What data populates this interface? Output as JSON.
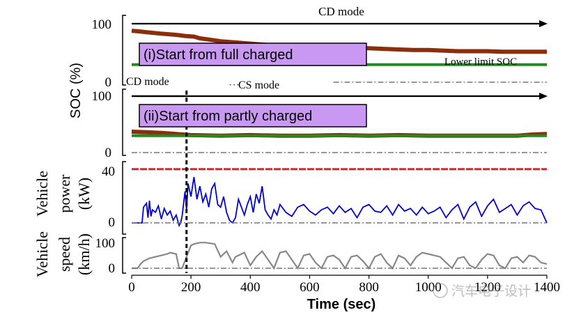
{
  "chart_data": {
    "type": "line",
    "xlabel": "Time (sec)",
    "xlim": [
      0,
      1400
    ],
    "x_ticks": [
      "0",
      "200",
      "400",
      "600",
      "800",
      "1000",
      "1200",
      "1400"
    ],
    "panels": [
      {
        "id": "soc_full",
        "ylabel_group": "SOC (%)",
        "ylim": [
          0,
          100
        ],
        "y_ticks": [
          "100",
          "0"
        ],
        "mode_label": "CD mode",
        "note": "(i)Start from full charged",
        "lower_limit_label": "Lower limit SOC",
        "series": [
          {
            "name": "SOC",
            "color": "#8b2e0c",
            "x": [
              0,
              20,
              60,
              100,
              150,
              180,
              210,
              230,
              260,
              300,
              350,
              400,
              450,
              500,
              550,
              600,
              650,
              700,
              750,
              800,
              850,
              900,
              950,
              1000,
              1050,
              1100,
              1150,
              1200,
              1250,
              1300,
              1350,
              1400
            ],
            "y": [
              88,
              87,
              85,
              83,
              81,
              79,
              78,
              75,
              73,
              70,
              68,
              66,
              64,
              62,
              61,
              60,
              60,
              59,
              59,
              58,
              57,
              56,
              55,
              55,
              54,
              53,
              53,
              53,
              52,
              52,
              52,
              52
            ]
          },
          {
            "name": "Lower limit SOC",
            "color": "#1e8c1e",
            "x": [
              0,
              1400
            ],
            "y": [
              30,
              30
            ]
          },
          {
            "name": "CD/CS mode",
            "color": "#777777",
            "x": [
              680,
              700,
              1400
            ],
            "y": [
              0,
              0,
              0
            ]
          }
        ]
      },
      {
        "id": "soc_partly",
        "ylim": [
          0,
          100
        ],
        "y_ticks": [
          "100",
          "0"
        ],
        "mode_label_cd": "CD mode",
        "mode_label_cs": "CS mode",
        "note": "(ii)Start from partly charged",
        "series": [
          {
            "name": "SOC",
            "color": "#8b2e0c",
            "x": [
              0,
              50,
              100,
              150,
              200,
              300,
              400,
              500,
              600,
              700,
              800,
              900,
              1000,
              1100,
              1200,
              1300,
              1350,
              1400
            ],
            "y": [
              37,
              36,
              35,
              33,
              31,
              30,
              31,
              30,
              30,
              31,
              30,
              31,
              30,
              30,
              30,
              30,
              32,
              33
            ]
          },
          {
            "name": "Lower limit SOC",
            "color": "#1e8c1e",
            "x": [
              0,
              1400
            ],
            "y": [
              30,
              30
            ]
          },
          {
            "name": "CD/CS mode",
            "color": "#777777",
            "x": [
              0,
              1400
            ],
            "y": [
              0,
              0
            ]
          }
        ]
      },
      {
        "id": "power",
        "ylabel_lines": [
          "Vehicle",
          "power",
          "(kW)"
        ],
        "ylim": [
          -8,
          44
        ],
        "y_ticks": [
          "40",
          "0"
        ],
        "series": [
          {
            "name": "Engine power limit",
            "color": "#e82020",
            "x": [
              0,
              1400
            ],
            "y": [
              41,
              41
            ]
          },
          {
            "name": "Vehicle power",
            "color": "#0000dd",
            "x": [
              0,
              35,
              40,
              50,
              55,
              60,
              65,
              70,
              80,
              90,
              100,
              110,
              120,
              130,
              140,
              150,
              160,
              165,
              170,
              180,
              185,
              190,
              200,
              210,
              220,
              230,
              240,
              250,
              260,
              270,
              280,
              290,
              300,
              310,
              320,
              330,
              340,
              350,
              360,
              370,
              380,
              390,
              400,
              410,
              420,
              430,
              440,
              450,
              460,
              470,
              480,
              490,
              500,
              520,
              540,
              560,
              580,
              600,
              620,
              640,
              660,
              680,
              700,
              720,
              740,
              760,
              780,
              800,
              820,
              840,
              860,
              880,
              900,
              920,
              940,
              960,
              980,
              1000,
              1020,
              1040,
              1060,
              1080,
              1100,
              1120,
              1140,
              1160,
              1180,
              1200,
              1220,
              1240,
              1260,
              1280,
              1300,
              1320,
              1340,
              1360,
              1380,
              1400
            ],
            "y": [
              0,
              0,
              12,
              15,
              4,
              17,
              5,
              10,
              8,
              13,
              3,
              11,
              6,
              9,
              2,
              6,
              -2,
              0,
              5,
              24,
              10,
              30,
              20,
              35,
              18,
              28,
              16,
              22,
              12,
              26,
              30,
              14,
              12,
              20,
              8,
              2,
              0,
              4,
              18,
              12,
              6,
              14,
              20,
              8,
              22,
              15,
              28,
              10,
              6,
              3,
              10,
              6,
              14,
              8,
              5,
              12,
              14,
              9,
              6,
              10,
              12,
              7,
              13,
              8,
              11,
              4,
              12,
              14,
              9,
              8,
              13,
              6,
              14,
              9,
              11,
              6,
              12,
              7,
              9,
              12,
              4,
              10,
              14,
              3,
              12,
              16,
              5,
              13,
              18,
              8,
              11,
              14,
              6,
              13,
              16,
              11,
              10,
              0
            ]
          },
          {
            "name": "Zero",
            "color": "#777777",
            "x": [
              0,
              1400
            ],
            "y": [
              0,
              0
            ]
          }
        ]
      },
      {
        "id": "speed",
        "ylabel_lines": [
          "Vehicle",
          "speed",
          "(km/h)"
        ],
        "ylim": [
          0,
          110
        ],
        "y_ticks": [
          "100",
          "0"
        ],
        "series": [
          {
            "name": "Vehicle speed",
            "color": "#888888",
            "x": [
              0,
              10,
              20,
              30,
              40,
              60,
              80,
              100,
              120,
              130,
              150,
              160,
              170,
              200,
              210,
              230,
              250,
              280,
              300,
              320,
              340,
              350,
              380,
              400,
              420,
              440,
              460,
              480,
              500,
              520,
              540,
              560,
              580,
              600,
              620,
              640,
              660,
              680,
              700,
              720,
              740,
              760,
              780,
              800,
              820,
              840,
              860,
              880,
              900,
              920,
              940,
              960,
              980,
              1000,
              1020,
              1040,
              1060,
              1080,
              1100,
              1120,
              1140,
              1160,
              1180,
              1200,
              1220,
              1240,
              1260,
              1280,
              1300,
              1320,
              1340,
              1360,
              1380,
              1400
            ],
            "y": [
              0,
              0,
              0,
              15,
              25,
              35,
              40,
              45,
              50,
              55,
              50,
              0,
              0,
              80,
              85,
              90,
              90,
              85,
              40,
              60,
              20,
              40,
              55,
              10,
              40,
              60,
              30,
              0,
              55,
              60,
              30,
              0,
              45,
              50,
              20,
              0,
              40,
              45,
              30,
              0,
              40,
              45,
              25,
              0,
              40,
              50,
              20,
              0,
              45,
              35,
              10,
              40,
              55,
              50,
              45,
              40,
              20,
              0,
              35,
              40,
              10,
              0,
              30,
              50,
              45,
              10,
              0,
              35,
              40,
              20,
              45,
              40,
              20,
              15
            ]
          },
          {
            "name": "Dotted guide",
            "color": "#777777",
            "x": [
              0,
              1400
            ],
            "y": [
              0,
              0
            ]
          }
        ]
      }
    ],
    "vertical_marker_x": 185
  },
  "watermark": "汽车电子设计"
}
